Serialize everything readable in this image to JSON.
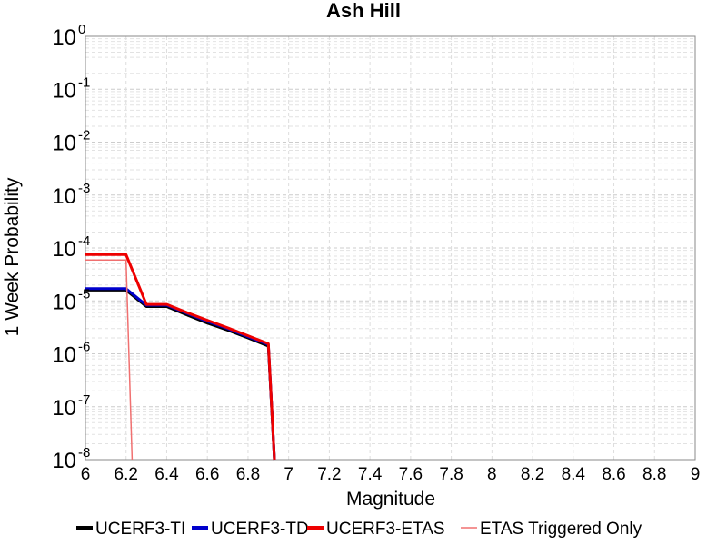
{
  "chart_data": {
    "type": "line",
    "title": "Ash Hill",
    "xlabel": "Magnitude",
    "ylabel": "1 Week Probability",
    "xlim": [
      6,
      9
    ],
    "ylim": [
      1e-08,
      1
    ],
    "yscale": "log",
    "grid": true,
    "legend_position": "bottom",
    "xticks": [
      "6",
      "6.2",
      "6.4",
      "6.6",
      "6.8",
      "7",
      "7.2",
      "7.4",
      "7.6",
      "7.8",
      "8",
      "8.2",
      "8.4",
      "8.6",
      "8.8",
      "9"
    ],
    "yticks": [
      {
        "base": "10",
        "exp": "0",
        "value": 1
      },
      {
        "base": "10",
        "exp": "-1",
        "value": 0.1
      },
      {
        "base": "10",
        "exp": "-2",
        "value": 0.01
      },
      {
        "base": "10",
        "exp": "-3",
        "value": 0.001
      },
      {
        "base": "10",
        "exp": "-4",
        "value": 0.0001
      },
      {
        "base": "10",
        "exp": "-5",
        "value": 1e-05
      },
      {
        "base": "10",
        "exp": "-6",
        "value": 1e-06
      },
      {
        "base": "10",
        "exp": "-7",
        "value": 1e-07
      },
      {
        "base": "10",
        "exp": "-8",
        "value": 1e-08
      }
    ],
    "series": [
      {
        "name": "UCERF3-TI",
        "color": "#000000",
        "width": 3,
        "x": [
          6.0,
          6.2,
          6.3,
          6.4,
          6.5,
          6.6,
          6.7,
          6.8,
          6.9,
          6.93
        ],
        "y": [
          1.6e-05,
          1.6e-05,
          7.8e-06,
          7.8e-06,
          5.4e-06,
          3.8e-06,
          2.8e-06,
          2e-06,
          1.4e-06,
          1e-08
        ]
      },
      {
        "name": "UCERF3-TD",
        "color": "#0000cc",
        "width": 3,
        "x": [
          6.0,
          6.2,
          6.3,
          6.4,
          6.5,
          6.6,
          6.7,
          6.8,
          6.9,
          6.93
        ],
        "y": [
          1.7e-05,
          1.7e-05,
          8.3e-06,
          8.3e-06,
          5.8e-06,
          4.1e-06,
          3e-06,
          2.1e-06,
          1.5e-06,
          1e-08
        ]
      },
      {
        "name": "UCERF3-ETAS",
        "color": "#ee0000",
        "width": 3,
        "x": [
          6.0,
          6.2,
          6.3,
          6.4,
          6.5,
          6.6,
          6.7,
          6.8,
          6.9,
          6.93
        ],
        "y": [
          7.5e-05,
          7.5e-05,
          8.6e-06,
          8.6e-06,
          6e-06,
          4.3e-06,
          3.1e-06,
          2.2e-06,
          1.55e-06,
          1e-08
        ]
      },
      {
        "name": "ETAS Triggered Only",
        "color": "#f07070",
        "width": 1.5,
        "x": [
          6.0,
          6.2,
          6.23
        ],
        "y": [
          5.9e-05,
          5.9e-05,
          1e-08
        ]
      }
    ]
  }
}
